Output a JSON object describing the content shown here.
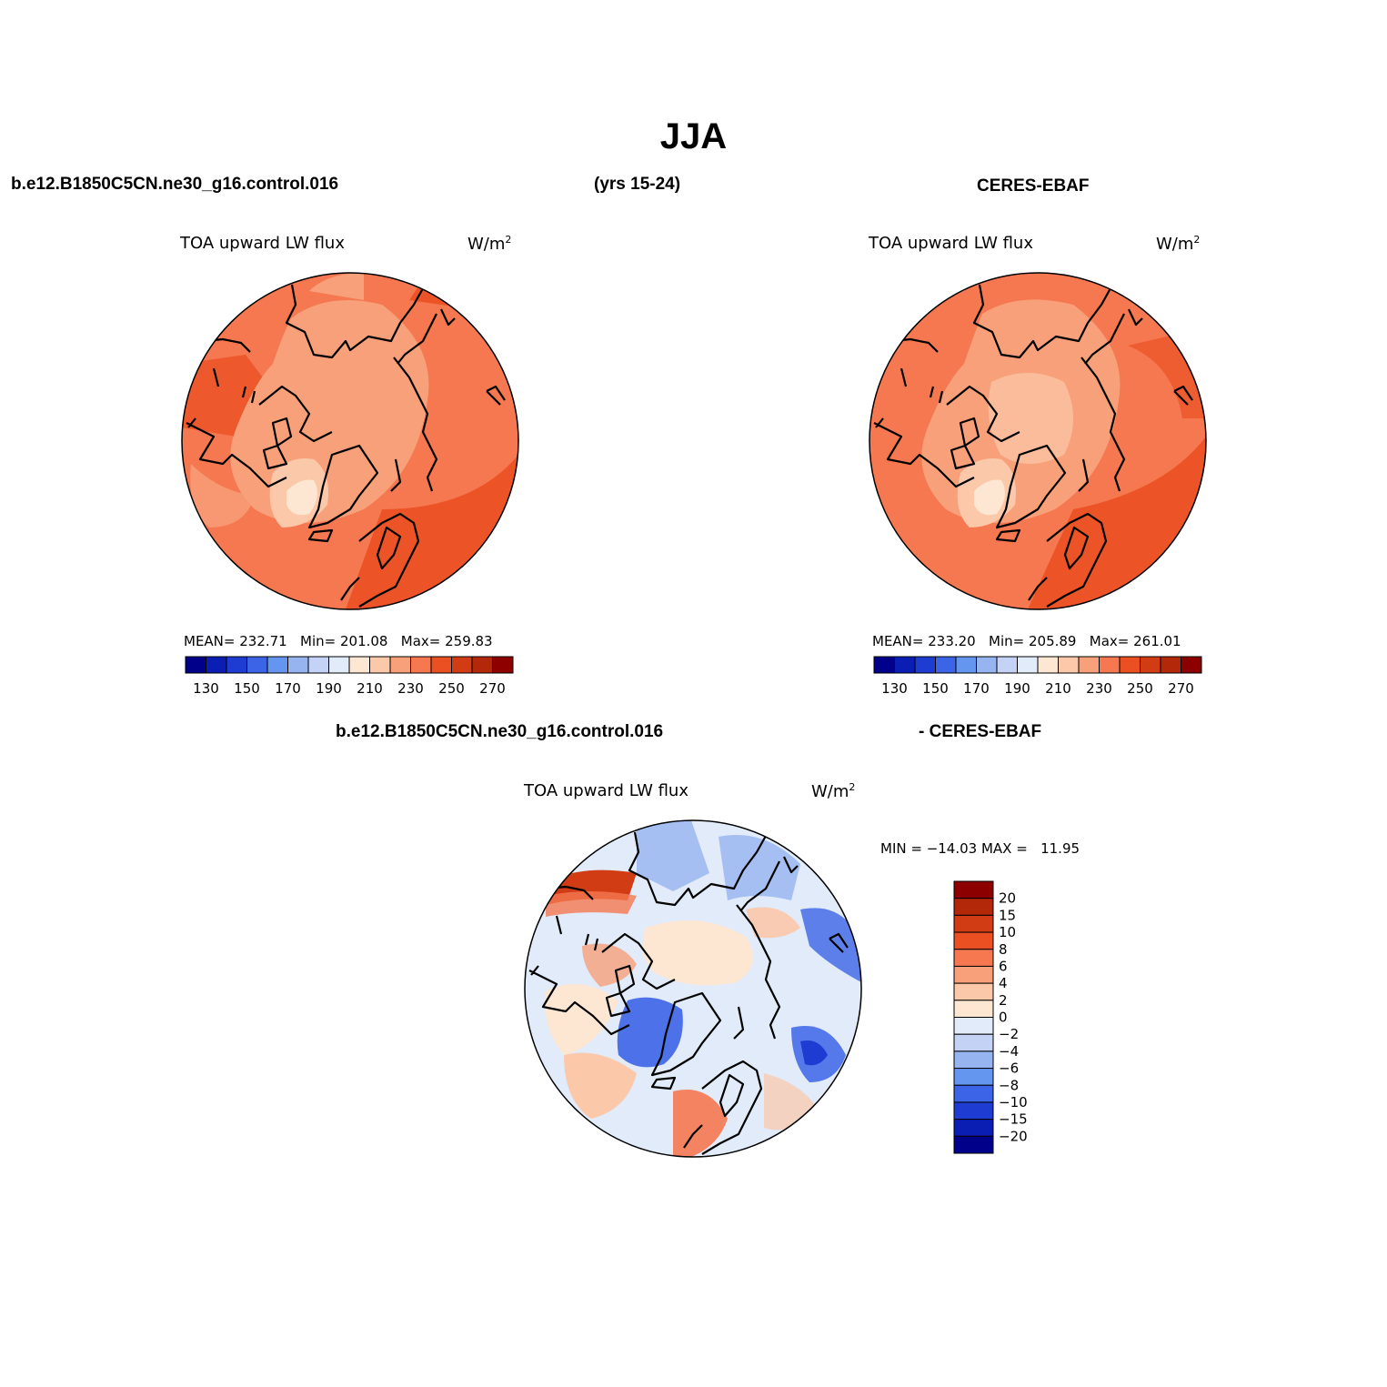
{
  "page": {
    "season": "JJA",
    "case_name": "b.e12.B1850C5CN.ne30_g16.control.016",
    "years": "(yrs 15-24)",
    "obs_name": "CERES-EBAF",
    "diff_case_name": "b.e12.B1850C5CN.ne30_g16.control.016",
    "diff_obs_name": "- CERES-EBAF"
  },
  "panels": {
    "model": {
      "variable": "TOA upward LW flux",
      "units_base": "W/m",
      "units_exp": "2",
      "stats": "MEAN= 232.71   Min= 201.08   Max= 259.83"
    },
    "obs": {
      "variable": "TOA upward LW flux",
      "units_base": "W/m",
      "units_exp": "2",
      "stats": "MEAN= 233.20   Min= 205.89   Max= 261.01"
    },
    "diff": {
      "variable": "TOA upward LW flux",
      "units_base": "W/m",
      "units_exp": "2",
      "stats": "MIN = −14.03 MAX =   11.95"
    }
  },
  "colorbars": {
    "abs": {
      "colors": [
        "#00008b",
        "#0a1eb4",
        "#1e3cd2",
        "#3c64e6",
        "#6496f0",
        "#96b4f0",
        "#c3d2f5",
        "#e1ebfa",
        "#fde6d2",
        "#fbc8aa",
        "#f8a07a",
        "#f57850",
        "#eb5023",
        "#d23c14",
        "#b4280a",
        "#8c0000"
      ],
      "ticks": [
        "130",
        "150",
        "170",
        "190",
        "210",
        "230",
        "250",
        "270"
      ]
    },
    "diff": {
      "colors_top_down": [
        "#8c0000",
        "#b4280a",
        "#d23c14",
        "#eb5023",
        "#f57850",
        "#f8a07a",
        "#fbc8aa",
        "#fde6d2",
        "#e1ebfa",
        "#c3d2f5",
        "#96b4f0",
        "#6496f0",
        "#3c64e6",
        "#1e3cd2",
        "#0a1eb4",
        "#00008b"
      ],
      "ticks": [
        "20",
        "15",
        "10",
        "8",
        "6",
        "4",
        "2",
        "0",
        "−2",
        "−4",
        "−6",
        "−8",
        "−10",
        "−15",
        "−20"
      ]
    }
  },
  "map_colors": {
    "abs_base": "#f57850",
    "abs_warm": "#eb5023",
    "abs_mid": "#f8a07a",
    "abs_cold": "#fbc8aa",
    "abs_coldest": "#fde6d2",
    "diff_base": "#e1ebfa",
    "diff_neg": "#96b4f0",
    "diff_neg_strong": "#3c64e6",
    "diff_pos": "#fbc8aa",
    "diff_pos_strong": "#f57850",
    "diff_pos_max": "#d23c14"
  }
}
